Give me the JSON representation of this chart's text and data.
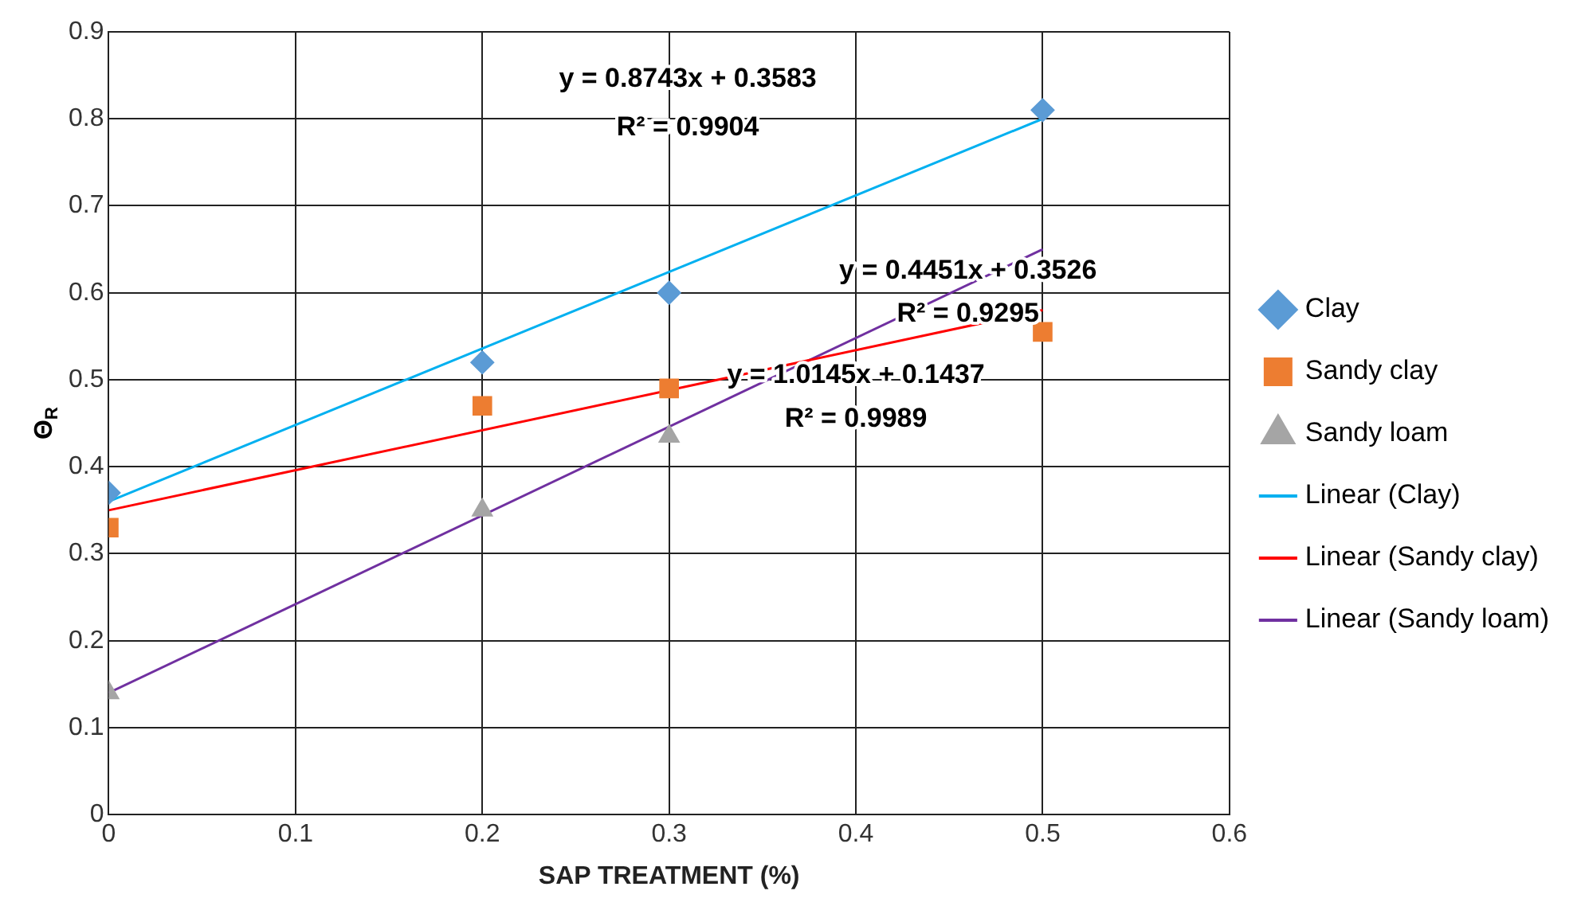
{
  "chart_data": {
    "type": "scatter",
    "xlabel": "SAP TREATMENT (%)",
    "ylabel": "Θ$_{R}$",
    "xlim": [
      0,
      0.6
    ],
    "xticks": [
      0,
      0.1,
      0.2,
      0.3,
      0.4,
      0.5,
      0.6
    ],
    "ylim": [
      0,
      0.9
    ],
    "yticks": [
      0,
      0.1,
      0.2,
      0.3,
      0.4,
      0.5,
      0.6,
      0.7,
      0.8,
      0.9
    ],
    "grid": true,
    "legend": "right",
    "series": [
      {
        "name": "Clay",
        "type": "scatter",
        "marker": "diamond",
        "color": "#5b9bd5",
        "x": [
          0,
          0.2,
          0.3,
          0.5
        ],
        "values": [
          0.37,
          0.52,
          0.6,
          0.81
        ]
      },
      {
        "name": "Sandy clay",
        "type": "scatter",
        "marker": "square",
        "color": "#ed7d31",
        "x": [
          0,
          0.2,
          0.3,
          0.5
        ],
        "values": [
          0.33,
          0.47,
          0.49,
          0.555
        ]
      },
      {
        "name": "Sandy loam",
        "type": "scatter",
        "marker": "triangle",
        "color": "#a5a5a5",
        "x": [
          0,
          0.2,
          0.3
        ],
        "values": [
          0.14,
          0.35,
          0.435
        ]
      },
      {
        "name": "Linear (Clay)",
        "type": "line",
        "marker": "none",
        "color": "#00b0f0",
        "x": [
          0,
          0.5
        ],
        "values": [
          0.36,
          0.8
        ]
      },
      {
        "name": "Linear (Sandy clay)",
        "type": "line",
        "marker": "none",
        "color": "#ff0000",
        "x": [
          0,
          0.5
        ],
        "values": [
          0.35,
          0.58
        ]
      },
      {
        "name": "Linear (Sandy loam)",
        "type": "line",
        "marker": "none",
        "color": "#7030a0",
        "x": [
          0,
          0.5
        ],
        "values": [
          0.14,
          0.65
        ]
      }
    ],
    "annotations": [
      "y = 0.8743x + 0.3583",
      "R² = 0.9904",
      "y = 0.4451x + 0.3526",
      "R² = 0.9295",
      "y = 1.0145x + 0.1437",
      "R² = 0.9989"
    ]
  }
}
